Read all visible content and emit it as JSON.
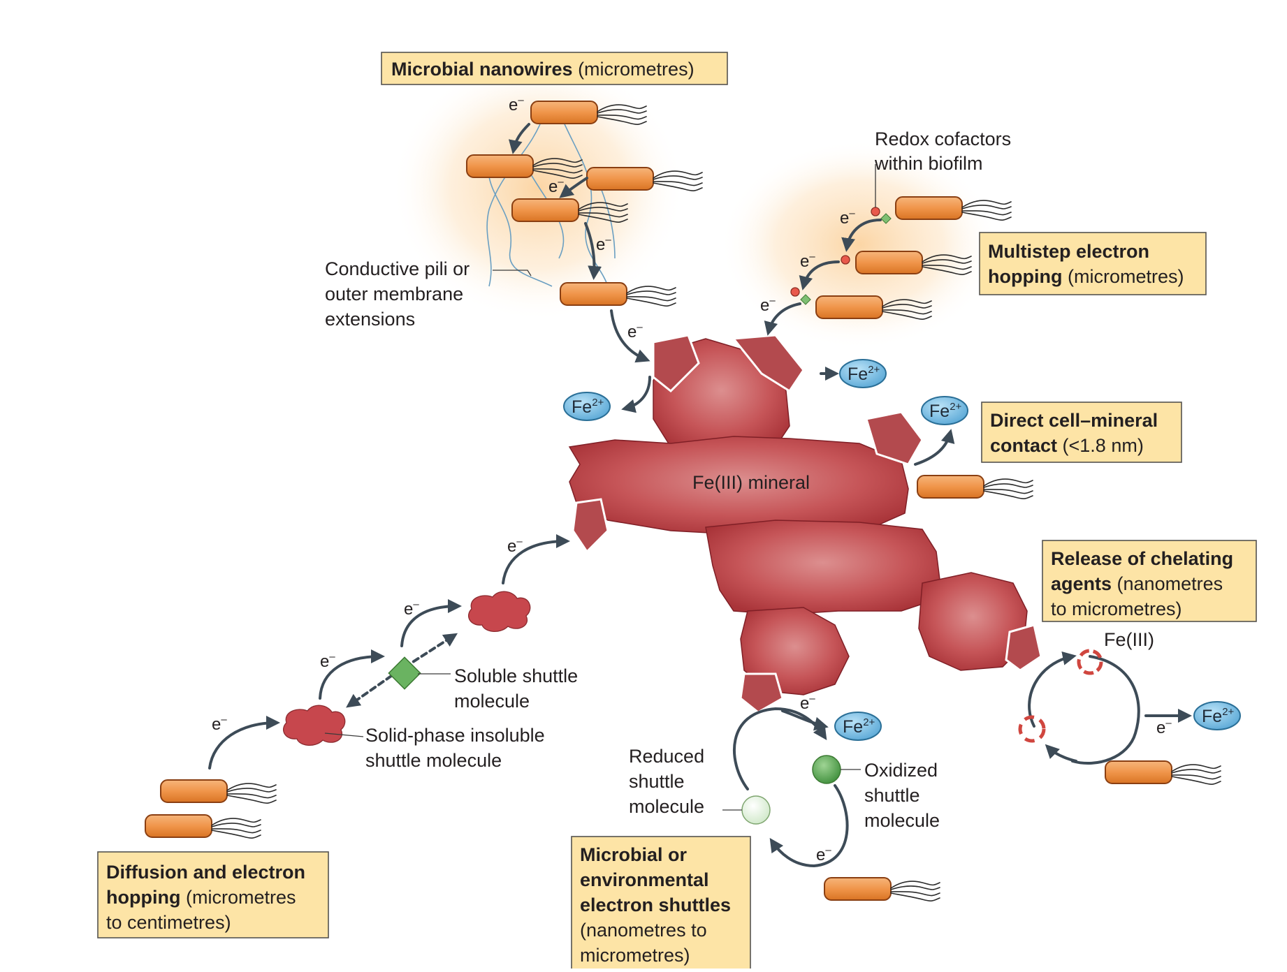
{
  "labels": {
    "nanowires_bold": "Microbial nanowires",
    "nanowires_rest": " (micrometres)",
    "multistep_line1_bold": "Multistep electron",
    "multistep_line2_bold": "hopping",
    "multistep_line2_rest": " (micrometres)",
    "direct_line1_bold": "Direct cell–mineral",
    "direct_line2_bold": "contact",
    "direct_line2_rest": " (<1.8 nm)",
    "chelating_line1_bold": "Release of chelating",
    "chelating_line2_bold": "agents",
    "chelating_line2_rest": " (nanometres",
    "chelating_line3": "to micrometres)",
    "diffusion_line1_bold": "Diffusion and electron",
    "diffusion_line2_bold": "hopping",
    "diffusion_line2_rest": " (micrometres",
    "diffusion_line3": "to centimetres)",
    "shuttles_line1_bold": "Microbial or",
    "shuttles_line2_bold": "environmental",
    "shuttles_line3_bold": "electron shuttles",
    "shuttles_line4": "(nanometres to",
    "shuttles_line5": "micrometres)"
  },
  "annotations": {
    "redox_line1": "Redox cofactors",
    "redox_line2": "within biofilm",
    "pili_line1": "Conductive pili or",
    "pili_line2": "outer membrane",
    "pili_line3": "extensions",
    "soluble_line1": "Soluble shuttle",
    "soluble_line2": "molecule",
    "solid_line1": "Solid-phase insoluble",
    "solid_line2": "shuttle molecule",
    "reduced_line1": "Reduced",
    "reduced_line2": "shuttle",
    "reduced_line3": "molecule",
    "oxidized_line1": "Oxidized",
    "oxidized_line2": "shuttle",
    "oxidized_line3": "molecule",
    "fe3_chel": "Fe(III)",
    "mineral_label": "Fe(III) mineral"
  },
  "symbols": {
    "electron": "e",
    "electron_sup": "–",
    "fe": "Fe",
    "fe_sup": "2+"
  },
  "colors": {
    "box_fill": "#fde4a6",
    "cell_fill": "#f0954a",
    "mineral": "#c04a4f",
    "fe_ion": "#6fb7e0",
    "shuttle_green": "#58a552"
  }
}
